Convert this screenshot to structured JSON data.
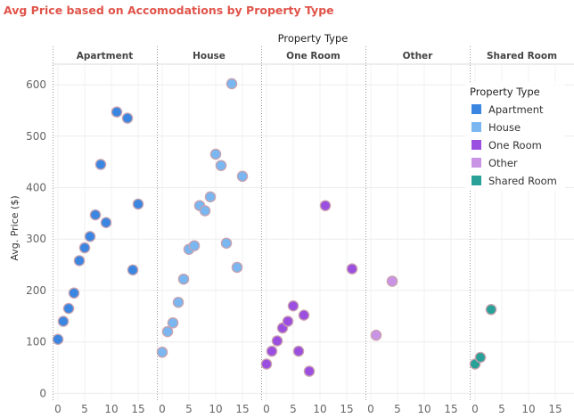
{
  "chart_data": {
    "type": "scatter",
    "title": "Avg Price based on Accomodations by Property Type",
    "column_header": "Property Type",
    "ylabel": "Avg. Price ($)",
    "ylim": [
      -15,
      640
    ],
    "xlim": [
      -1,
      18.5
    ],
    "y_ticks": [
      0,
      100,
      200,
      300,
      400,
      500,
      600
    ],
    "x_ticks": [
      0,
      5,
      10,
      15
    ],
    "grid": true,
    "legend": {
      "title": "Property Type",
      "position": "top-right",
      "entries": [
        {
          "name": "Apartment",
          "color": "#3a86e0"
        },
        {
          "name": "House",
          "color": "#7ab6ef"
        },
        {
          "name": "One Room",
          "color": "#9b4fe0"
        },
        {
          "name": "Other",
          "color": "#c994e6"
        },
        {
          "name": "Shared Room",
          "color": "#2aa198"
        }
      ]
    },
    "panels": [
      {
        "name": "Apartment",
        "color": "#3a86e0",
        "points": [
          {
            "x": 0,
            "y": 105
          },
          {
            "x": 1,
            "y": 140
          },
          {
            "x": 2,
            "y": 165
          },
          {
            "x": 3,
            "y": 195
          },
          {
            "x": 4,
            "y": 258
          },
          {
            "x": 5,
            "y": 283
          },
          {
            "x": 6,
            "y": 305
          },
          {
            "x": 7,
            "y": 347
          },
          {
            "x": 8,
            "y": 445
          },
          {
            "x": 9,
            "y": 332
          },
          {
            "x": 11,
            "y": 547
          },
          {
            "x": 13,
            "y": 535
          },
          {
            "x": 14,
            "y": 240
          },
          {
            "x": 15,
            "y": 368
          }
        ]
      },
      {
        "name": "House",
        "color": "#7ab6ef",
        "points": [
          {
            "x": 0,
            "y": 80
          },
          {
            "x": 1,
            "y": 120
          },
          {
            "x": 2,
            "y": 137
          },
          {
            "x": 3,
            "y": 177
          },
          {
            "x": 4,
            "y": 222
          },
          {
            "x": 5,
            "y": 280
          },
          {
            "x": 6,
            "y": 287
          },
          {
            "x": 7,
            "y": 365
          },
          {
            "x": 8,
            "y": 355
          },
          {
            "x": 9,
            "y": 382
          },
          {
            "x": 10,
            "y": 465
          },
          {
            "x": 11,
            "y": 443
          },
          {
            "x": 12,
            "y": 292
          },
          {
            "x": 13,
            "y": 602
          },
          {
            "x": 14,
            "y": 245
          },
          {
            "x": 15,
            "y": 422
          }
        ]
      },
      {
        "name": "One Room",
        "color": "#9b4fe0",
        "points": [
          {
            "x": 0,
            "y": 57
          },
          {
            "x": 1,
            "y": 82
          },
          {
            "x": 2,
            "y": 102
          },
          {
            "x": 3,
            "y": 127
          },
          {
            "x": 4,
            "y": 140
          },
          {
            "x": 5,
            "y": 170
          },
          {
            "x": 6,
            "y": 82
          },
          {
            "x": 7,
            "y": 152
          },
          {
            "x": 8,
            "y": 43
          },
          {
            "x": 11,
            "y": 365
          },
          {
            "x": 16,
            "y": 242
          }
        ]
      },
      {
        "name": "Other",
        "color": "#c994e6",
        "points": [
          {
            "x": 1,
            "y": 113
          },
          {
            "x": 4,
            "y": 218
          }
        ]
      },
      {
        "name": "Shared Room",
        "color": "#2aa198",
        "points": [
          {
            "x": 0,
            "y": 57
          },
          {
            "x": 1,
            "y": 70
          },
          {
            "x": 3,
            "y": 163
          }
        ]
      }
    ]
  }
}
